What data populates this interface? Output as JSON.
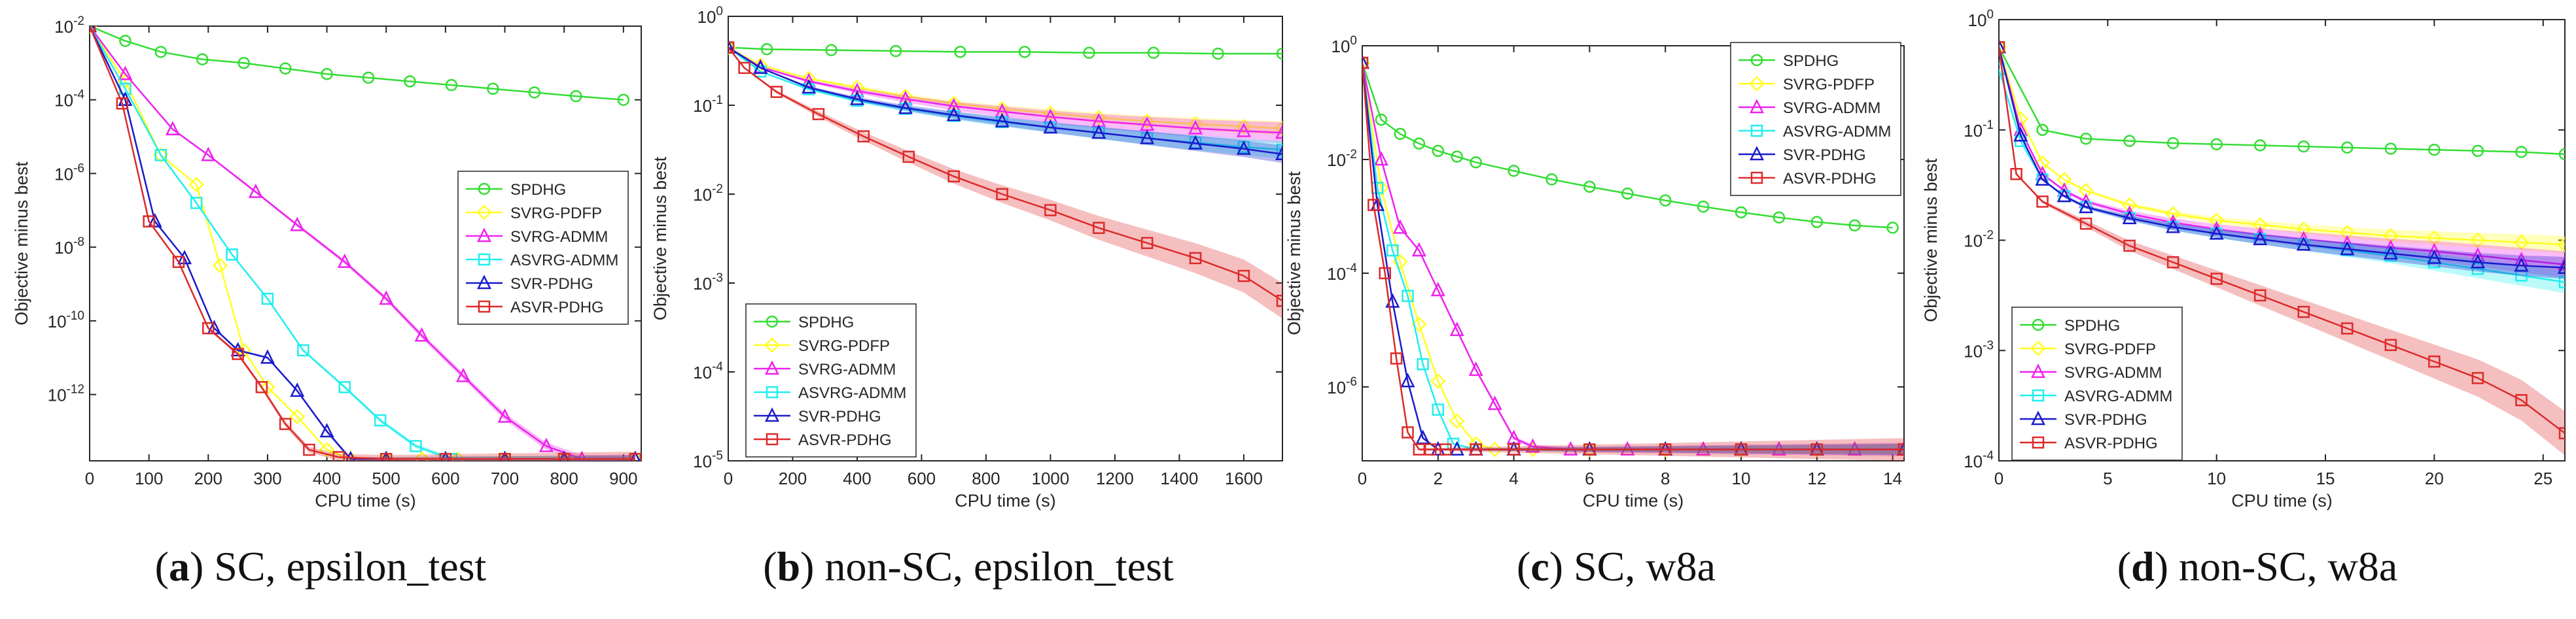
{
  "colors": {
    "SPDHG": "#33dd33",
    "SVRG-PDFP": "#ffff22",
    "SVRG-ADMM": "#ee22ee",
    "ASVRG-ADMM": "#22eeee",
    "SVR-PDHG": "#1a1acc",
    "ASVR-PDHG": "#dd2a2a"
  },
  "chart_data": [
    {
      "type": "line",
      "caption_letter": "a",
      "caption_text": "SC, epsilon_test",
      "xlabel": "CPU time (s)",
      "ylabel": "Objective minus best",
      "yscale": "log",
      "xlim": [
        0,
        930
      ],
      "ylim_exp": [
        -13.8,
        -2
      ],
      "xticks": [
        "0",
        "100",
        "200",
        "300",
        "400",
        "500",
        "600",
        "700",
        "800",
        "900"
      ],
      "xtick_values": [
        0,
        100,
        200,
        300,
        400,
        500,
        600,
        700,
        800,
        900
      ],
      "yticks": [
        "10-2",
        "10-4",
        "10-6",
        "10-8",
        "10-10",
        "10-12"
      ],
      "ytick_exp": [
        -2,
        -4,
        -6,
        -8,
        -10,
        -12
      ],
      "legend_position": "middle-right",
      "series": [
        {
          "name": "SPDHG",
          "x": [
            0,
            60,
            120,
            190,
            260,
            330,
            400,
            470,
            540,
            610,
            680,
            750,
            820,
            900
          ],
          "logy": [
            -2.0,
            -2.4,
            -2.7,
            -2.9,
            -3.0,
            -3.15,
            -3.3,
            -3.4,
            -3.5,
            -3.6,
            -3.7,
            -3.8,
            -3.9,
            -4.0
          ]
        },
        {
          "name": "SVRG-PDFP",
          "x": [
            0,
            60,
            120,
            180,
            220,
            260,
            300,
            350,
            400,
            440,
            500,
            560,
            620,
            700,
            800,
            920
          ],
          "logy": [
            -2.0,
            -3.5,
            -5.5,
            -6.3,
            -8.5,
            -10.8,
            -11.8,
            -12.6,
            -13.5,
            -13.75,
            -13.75,
            -13.75,
            -13.75,
            -13.75,
            -13.75,
            -13.75
          ]
        },
        {
          "name": "SVRG-ADMM",
          "x": [
            0,
            60,
            140,
            200,
            280,
            350,
            430,
            500,
            560,
            630,
            700,
            770,
            830,
            920
          ],
          "logy": [
            -2.0,
            -3.3,
            -4.8,
            -5.5,
            -6.5,
            -7.4,
            -8.4,
            -9.4,
            -10.4,
            -11.5,
            -12.6,
            -13.4,
            -13.75,
            -13.75
          ]
        },
        {
          "name": "ASVRG-ADMM",
          "x": [
            0,
            60,
            120,
            180,
            240,
            300,
            360,
            430,
            490,
            550,
            610,
            700,
            800,
            920
          ],
          "logy": [
            -2.0,
            -3.7,
            -5.5,
            -6.8,
            -8.2,
            -9.4,
            -10.8,
            -11.8,
            -12.7,
            -13.4,
            -13.75,
            -13.75,
            -13.75,
            -13.75
          ]
        },
        {
          "name": "SVR-PDHG",
          "x": [
            0,
            60,
            110,
            160,
            210,
            250,
            300,
            350,
            400,
            440,
            500,
            600,
            700,
            800,
            920
          ],
          "logy": [
            -2.0,
            -4.0,
            -7.3,
            -8.3,
            -10.2,
            -10.8,
            -11.0,
            -11.9,
            -13.0,
            -13.75,
            -13.75,
            -13.75,
            -13.75,
            -13.75,
            -13.75
          ]
        },
        {
          "name": "ASVR-PDHG",
          "x": [
            0,
            55,
            100,
            150,
            200,
            250,
            290,
            330,
            370,
            420,
            500,
            600,
            700,
            800,
            920
          ],
          "logy": [
            -2.0,
            -4.1,
            -7.3,
            -8.4,
            -10.2,
            -10.9,
            -11.8,
            -12.8,
            -13.5,
            -13.7,
            -13.75,
            -13.75,
            -13.75,
            -13.75,
            -13.75
          ]
        }
      ]
    },
    {
      "type": "line",
      "caption_letter": "b",
      "caption_text": "non-SC, epsilon_test",
      "xlabel": "CPU time (s)",
      "ylabel": "Objective minus best",
      "yscale": "log",
      "xlim": [
        0,
        1720
      ],
      "ylim_exp": [
        -5,
        0
      ],
      "xticks": [
        "0",
        "200",
        "400",
        "600",
        "800",
        "1000",
        "1200",
        "1400",
        "1600"
      ],
      "xtick_values": [
        0,
        200,
        400,
        600,
        800,
        1000,
        1200,
        1400,
        1600
      ],
      "yticks": [
        "10-5",
        "10-4",
        "10-3",
        "10-2",
        "10-1",
        "100"
      ],
      "ytick_exp": [
        -5,
        -4,
        -3,
        -2,
        -1,
        0
      ],
      "legend_position": "lower-left",
      "series": [
        {
          "name": "SPDHG",
          "x": [
            0,
            120,
            320,
            520,
            720,
            920,
            1120,
            1320,
            1520,
            1720
          ],
          "logy": [
            -0.35,
            -0.37,
            -0.38,
            -0.39,
            -0.4,
            -0.4,
            -0.41,
            -0.41,
            -0.42,
            -0.42
          ]
        },
        {
          "name": "SVRG-PDFP",
          "x": [
            0,
            100,
            250,
            400,
            550,
            700,
            850,
            1000,
            1150,
            1300,
            1450,
            1600,
            1720
          ],
          "logy": [
            -0.35,
            -0.55,
            -0.7,
            -0.8,
            -0.9,
            -0.98,
            -1.04,
            -1.09,
            -1.14,
            -1.18,
            -1.21,
            -1.24,
            -1.26
          ]
        },
        {
          "name": "SVRG-ADMM",
          "x": [
            0,
            100,
            250,
            400,
            550,
            700,
            850,
            1000,
            1150,
            1300,
            1450,
            1600,
            1720
          ],
          "logy": [
            -0.35,
            -0.57,
            -0.73,
            -0.84,
            -0.93,
            -1.01,
            -1.07,
            -1.13,
            -1.18,
            -1.22,
            -1.26,
            -1.29,
            -1.31
          ]
        },
        {
          "name": "ASVRG-ADMM",
          "x": [
            0,
            100,
            250,
            400,
            550,
            700,
            850,
            1000,
            1150,
            1300,
            1450,
            1600,
            1720
          ],
          "logy": [
            -0.35,
            -0.62,
            -0.82,
            -0.95,
            -1.04,
            -1.12,
            -1.19,
            -1.25,
            -1.31,
            -1.37,
            -1.42,
            -1.47,
            -1.5
          ]
        },
        {
          "name": "SVR-PDHG",
          "x": [
            0,
            100,
            250,
            400,
            550,
            700,
            850,
            1000,
            1150,
            1300,
            1450,
            1600,
            1720
          ],
          "logy": [
            -0.35,
            -0.58,
            -0.8,
            -0.93,
            -1.03,
            -1.11,
            -1.18,
            -1.25,
            -1.31,
            -1.37,
            -1.43,
            -1.49,
            -1.55
          ]
        },
        {
          "name": "ASVR-PDHG",
          "x": [
            0,
            50,
            150,
            280,
            420,
            560,
            700,
            850,
            1000,
            1150,
            1300,
            1450,
            1600,
            1720
          ],
          "logy": [
            -0.35,
            -0.58,
            -0.85,
            -1.1,
            -1.35,
            -1.58,
            -1.8,
            -2.0,
            -2.18,
            -2.38,
            -2.55,
            -2.72,
            -2.92,
            -3.2
          ]
        }
      ]
    },
    {
      "type": "line",
      "caption_letter": "c",
      "caption_text": "SC, w8a",
      "xlabel": "CPU time (s)",
      "ylabel": "Objective minus best",
      "yscale": "log",
      "xlim": [
        0,
        14.3
      ],
      "ylim_exp": [
        -7.3,
        0
      ],
      "xticks": [
        "0",
        "2",
        "4",
        "6",
        "8",
        "10",
        "12",
        "14"
      ],
      "xtick_values": [
        0,
        2,
        4,
        6,
        8,
        10,
        12,
        14
      ],
      "yticks": [
        "100",
        "10-2",
        "10-4",
        "10-6"
      ],
      "ytick_exp": [
        0,
        -2,
        -4,
        -6
      ],
      "legend_position": "top-right",
      "series": [
        {
          "name": "SPDHG",
          "x": [
            0,
            0.5,
            1.0,
            1.5,
            2.0,
            2.5,
            3.0,
            4.0,
            5.0,
            6.0,
            7.0,
            8.0,
            9.0,
            10.0,
            11.0,
            12.0,
            13.0,
            14.0
          ],
          "logy": [
            -0.3,
            -1.3,
            -1.55,
            -1.72,
            -1.85,
            -1.95,
            -2.05,
            -2.2,
            -2.35,
            -2.48,
            -2.6,
            -2.72,
            -2.83,
            -2.93,
            -3.02,
            -3.1,
            -3.16,
            -3.2
          ]
        },
        {
          "name": "SVRG-PDFP",
          "x": [
            0,
            0.5,
            1.0,
            1.5,
            2.0,
            2.5,
            3.0,
            3.5,
            4.5,
            6,
            8,
            10,
            12,
            14.3
          ],
          "logy": [
            -0.3,
            -2.5,
            -3.8,
            -4.9,
            -5.9,
            -6.6,
            -7.0,
            -7.1,
            -7.1,
            -7.1,
            -7.1,
            -7.1,
            -7.1,
            -7.1
          ]
        },
        {
          "name": "SVRG-ADMM",
          "x": [
            0,
            0.5,
            1.0,
            1.5,
            2.0,
            2.5,
            3.0,
            3.5,
            4.0,
            4.5,
            5.5,
            7,
            9,
            11,
            13,
            14.3
          ],
          "logy": [
            -0.3,
            -2.0,
            -3.2,
            -3.6,
            -4.3,
            -5.0,
            -5.7,
            -6.3,
            -6.9,
            -7.05,
            -7.1,
            -7.1,
            -7.1,
            -7.1,
            -7.1,
            -7.1
          ]
        },
        {
          "name": "ASVRG-ADMM",
          "x": [
            0,
            0.4,
            0.8,
            1.2,
            1.6,
            2.0,
            2.4,
            3.0,
            4,
            6,
            8,
            10,
            12,
            14.3
          ],
          "logy": [
            -0.3,
            -2.5,
            -3.6,
            -4.4,
            -5.6,
            -6.4,
            -7.0,
            -7.1,
            -7.1,
            -7.1,
            -7.1,
            -7.1,
            -7.1,
            -7.1
          ]
        },
        {
          "name": "SVR-PDHG",
          "x": [
            0,
            0.4,
            0.8,
            1.2,
            1.6,
            2.0,
            2.5,
            3,
            4,
            6,
            8,
            10,
            12,
            14.3
          ],
          "logy": [
            -0.3,
            -2.8,
            -4.5,
            -5.9,
            -6.9,
            -7.1,
            -7.1,
            -7.1,
            -7.1,
            -7.1,
            -7.1,
            -7.1,
            -7.1,
            -7.1
          ]
        },
        {
          "name": "ASVR-PDHG",
          "x": [
            0,
            0.3,
            0.6,
            0.9,
            1.2,
            1.5,
            1.8,
            2.2,
            3,
            4,
            6,
            8,
            10,
            12,
            14.3
          ],
          "logy": [
            -0.3,
            -2.8,
            -4.0,
            -5.5,
            -6.8,
            -7.1,
            -7.1,
            -7.1,
            -7.1,
            -7.1,
            -7.1,
            -7.1,
            -7.1,
            -7.1,
            -7.1
          ]
        }
      ]
    },
    {
      "type": "line",
      "caption_letter": "d",
      "caption_text": "non-SC, w8a",
      "xlabel": "CPU time (s)",
      "ylabel": "Objective minus best",
      "yscale": "log",
      "xlim": [
        0,
        26
      ],
      "ylim_exp": [
        -4,
        0
      ],
      "xticks": [
        "0",
        "5",
        "10",
        "15",
        "20",
        "25"
      ],
      "xtick_values": [
        0,
        5,
        10,
        15,
        20,
        25
      ],
      "yticks": [
        "10-4",
        "10-3",
        "10-2",
        "10-1",
        "100"
      ],
      "ytick_exp": [
        -4,
        -3,
        -2,
        -1,
        0
      ],
      "legend_position": "lower-left",
      "series": [
        {
          "name": "SPDHG",
          "x": [
            0,
            2,
            4,
            6,
            8,
            10,
            12,
            14,
            16,
            18,
            20,
            22,
            24,
            26
          ],
          "logy": [
            -0.25,
            -1.0,
            -1.08,
            -1.1,
            -1.12,
            -1.13,
            -1.14,
            -1.15,
            -1.16,
            -1.17,
            -1.18,
            -1.19,
            -1.2,
            -1.22
          ]
        },
        {
          "name": "SVRG-PDFP",
          "x": [
            0,
            1,
            2,
            3,
            4,
            6,
            8,
            10,
            12,
            14,
            16,
            18,
            20,
            22,
            24,
            26
          ],
          "logy": [
            -0.25,
            -0.9,
            -1.3,
            -1.45,
            -1.55,
            -1.68,
            -1.76,
            -1.82,
            -1.86,
            -1.9,
            -1.93,
            -1.96,
            -1.98,
            -2.0,
            -2.02,
            -2.04
          ]
        },
        {
          "name": "SVRG-ADMM",
          "x": [
            0,
            1,
            2,
            3,
            4,
            6,
            8,
            10,
            12,
            14,
            16,
            18,
            20,
            22,
            24,
            26
          ],
          "logy": [
            -0.25,
            -1.0,
            -1.4,
            -1.55,
            -1.65,
            -1.76,
            -1.84,
            -1.9,
            -1.95,
            -1.99,
            -2.03,
            -2.07,
            -2.1,
            -2.14,
            -2.18,
            -2.22
          ]
        },
        {
          "name": "ASVRG-ADMM",
          "x": [
            0,
            1,
            2,
            3,
            4,
            6,
            8,
            10,
            12,
            14,
            16,
            18,
            20,
            22,
            24,
            26
          ],
          "logy": [
            -0.45,
            -1.1,
            -1.45,
            -1.6,
            -1.7,
            -1.8,
            -1.88,
            -1.94,
            -1.99,
            -2.04,
            -2.09,
            -2.14,
            -2.2,
            -2.26,
            -2.32,
            -2.38
          ]
        },
        {
          "name": "SVR-PDHG",
          "x": [
            0,
            1,
            2,
            3,
            4,
            6,
            8,
            10,
            12,
            14,
            16,
            18,
            20,
            22,
            24,
            26
          ],
          "logy": [
            -0.25,
            -1.05,
            -1.45,
            -1.6,
            -1.7,
            -1.8,
            -1.88,
            -1.94,
            -1.99,
            -2.04,
            -2.08,
            -2.12,
            -2.16,
            -2.2,
            -2.23,
            -2.25
          ]
        },
        {
          "name": "ASVR-PDHG",
          "x": [
            0,
            0.8,
            2,
            4,
            6,
            8,
            10,
            12,
            14,
            16,
            18,
            20,
            22,
            24,
            26
          ],
          "logy": [
            -0.25,
            -1.4,
            -1.65,
            -1.85,
            -2.05,
            -2.2,
            -2.35,
            -2.5,
            -2.65,
            -2.8,
            -2.95,
            -3.1,
            -3.25,
            -3.45,
            -3.75
          ]
        }
      ]
    }
  ]
}
